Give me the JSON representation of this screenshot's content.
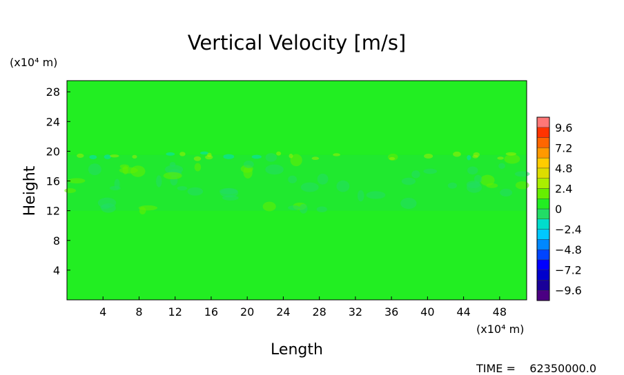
{
  "chart_data": {
    "type": "heatmap",
    "title": "Vertical Velocity [m/s]",
    "xlabel": "Length",
    "ylabel": "Height",
    "x_unit": "(x10⁴ m)",
    "y_unit": "(x10⁴ m)",
    "xlim": [
      0,
      51
    ],
    "ylim": [
      0,
      29.5
    ],
    "x_ticks": [
      "4",
      "8",
      "12",
      "16",
      "20",
      "24",
      "28",
      "32",
      "36",
      "40",
      "44",
      "48"
    ],
    "y_ticks": [
      "4",
      "8",
      "12",
      "16",
      "20",
      "24",
      "28"
    ],
    "x_tick_values": [
      4,
      8,
      12,
      16,
      20,
      24,
      28,
      32,
      36,
      40,
      44,
      48
    ],
    "y_tick_values": [
      4,
      8,
      12,
      16,
      20,
      24,
      28
    ],
    "colorbar": {
      "range": [
        -10.8,
        10.8
      ],
      "labels": [
        "9.6",
        "7.2",
        "4.8",
        "2.4",
        "0",
        "−2.4",
        "−4.8",
        "−7.2",
        "−9.6"
      ],
      "label_values": [
        9.6,
        7.2,
        4.8,
        2.4,
        0,
        -2.4,
        -4.8,
        -7.2,
        -9.6
      ],
      "levels": [
        -10.8,
        -9.6,
        -8.4,
        -7.2,
        -6.0,
        -4.8,
        -3.6,
        -2.4,
        -1.2,
        0,
        1.2,
        2.4,
        3.6,
        4.8,
        6.0,
        7.2,
        8.4,
        9.6,
        10.8
      ],
      "colors": [
        "#4b0082",
        "#1a0099",
        "#0000cc",
        "#0000ff",
        "#0044ff",
        "#0088ff",
        "#00c8ff",
        "#00ddcc",
        "#22dd66",
        "#22ee22",
        "#66ee00",
        "#aaee00",
        "#dddd00",
        "#ffcc00",
        "#ff9900",
        "#ff6600",
        "#ff3300",
        "#ff7777"
      ]
    },
    "dominant_value": 0,
    "band": {
      "ylim": [
        12,
        19.5
      ],
      "description_values": [
        -1.2,
        1.2
      ]
    },
    "time_label": "TIME =",
    "time_value": "62350000.0"
  }
}
